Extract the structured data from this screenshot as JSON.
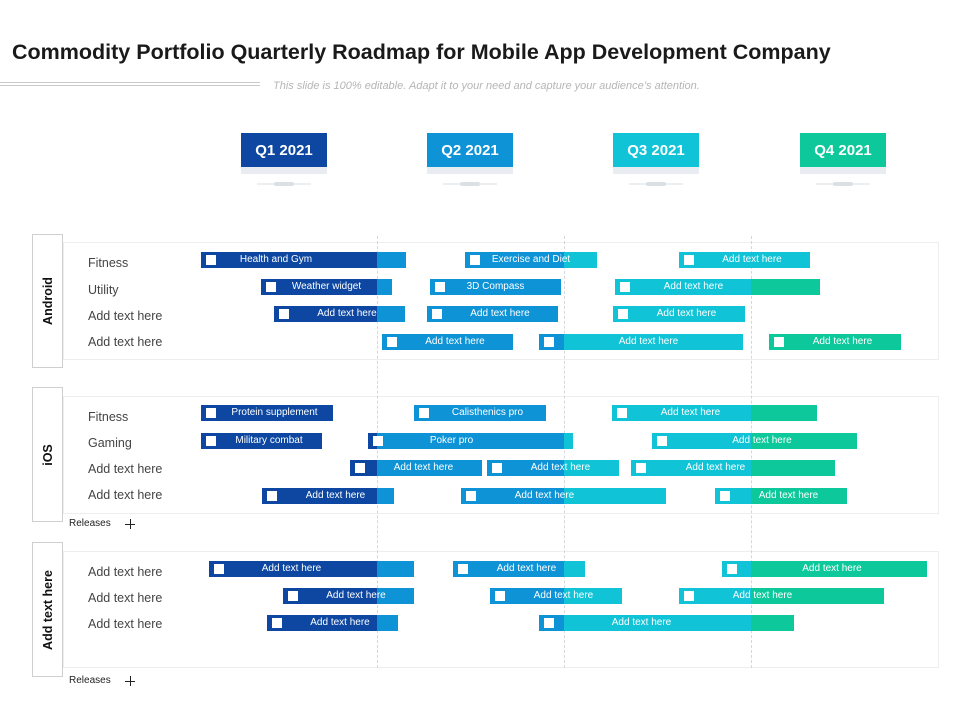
{
  "header": {
    "title": "Commodity Portfolio Quarterly Roadmap for Mobile App Development Company",
    "subtitle": "This slide is 100% editable. Adapt it to your need and capture your audience’s attention."
  },
  "colors": {
    "q1": "#0d47a1",
    "q2": "#0e93d6",
    "q3": "#11c3d6",
    "q4": "#0dc89a"
  },
  "quarters": [
    "Q1 2021",
    "Q2 2021",
    "Q3 2021",
    "Q4 2021"
  ],
  "groups": [
    {
      "label": "Android",
      "rows": [
        "Fitness",
        "Utility",
        "Add text here",
        "Add text here"
      ],
      "bars": [
        {
          "label": "Health and Gym"
        },
        {
          "label": "Exercise and Diet"
        },
        {
          "label": "Add text here"
        },
        {
          "label": "Weather widget"
        },
        {
          "label": "3D Compass"
        },
        {
          "label": "Add text here"
        },
        {
          "label": "Add text here"
        },
        {
          "label": "Add text here"
        },
        {
          "label": "Add text here"
        },
        {
          "label": "Add text here"
        },
        {
          "label": "Add text here"
        },
        {
          "label": "Add text here"
        }
      ]
    },
    {
      "label": "iOS",
      "rows": [
        "Fitness",
        "Gaming",
        "Add text here",
        "Add text here"
      ],
      "releases": "Releases",
      "bars": [
        {
          "label": "Protein supplement"
        },
        {
          "label": "Calisthenics pro"
        },
        {
          "label": "Add text here"
        },
        {
          "label": "Military combat"
        },
        {
          "label": "Poker pro"
        },
        {
          "label": "Add text here"
        },
        {
          "label": "Add text here"
        },
        {
          "label": "Add text here"
        },
        {
          "label": "Add text here"
        },
        {
          "label": "Add text here"
        },
        {
          "label": "Add text here"
        },
        {
          "label": "Add text here"
        }
      ]
    },
    {
      "label": "Add text here",
      "rows": [
        "Add text here",
        "Add text here",
        "Add text here"
      ],
      "releases": "Releases",
      "bars": [
        {
          "label": "Add text here"
        },
        {
          "label": "Add text here"
        },
        {
          "label": "Add text here"
        },
        {
          "label": "Add text here"
        },
        {
          "label": "Add text here"
        },
        {
          "label": "Add text here"
        },
        {
          "label": "Add text here"
        },
        {
          "label": "Add text here"
        }
      ]
    }
  ]
}
